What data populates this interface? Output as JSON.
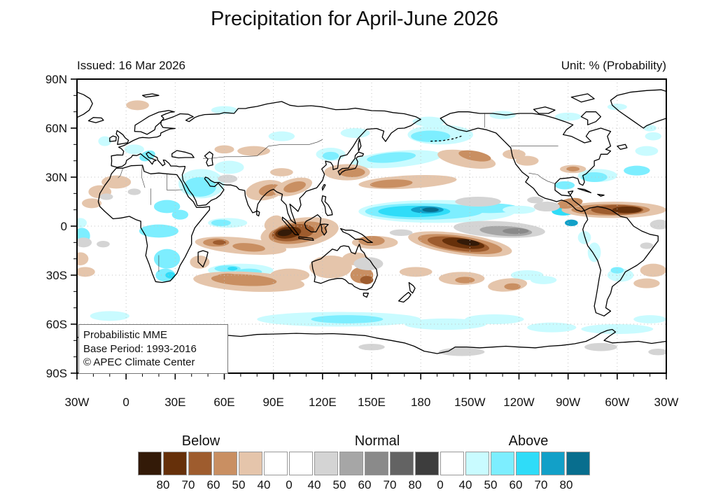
{
  "page": {
    "title": "Precipitation for April-June 2026"
  },
  "map_header": {
    "issued": "Issued: 16 Mar 2026",
    "unit": "Unit: % (Probability)"
  },
  "legend_box": {
    "line1": "Probabilistic MME",
    "line2": "Base Period: 1993-2016",
    "line3": "© APEC Climate Center"
  },
  "chart_data": {
    "type": "heatmap",
    "title": "Precipitation for April-June 2026",
    "issued": "16 Mar 2026",
    "unit": "% (Probability)",
    "projection": "equirectangular world map, longitude 30W eastward through 180 back to 30W, latitude 90N-90S",
    "x_ticks": [
      "30W",
      "0",
      "30E",
      "60E",
      "90E",
      "120E",
      "150E",
      "180",
      "150W",
      "120W",
      "90W",
      "60W",
      "30W"
    ],
    "y_ticks": [
      "90N",
      "60N",
      "30N",
      "0",
      "30S",
      "60S",
      "90S"
    ],
    "lon_range_deg": [
      -30,
      330
    ],
    "lat_range_deg": [
      -90,
      90
    ],
    "grid": "dashed graticule every 30 degrees",
    "palette": {
      "b80": "#331a08",
      "b70": "#66300a",
      "b60": "#9e5c2e",
      "b50": "#c98f62",
      "b40": "#e5c5ab",
      "n40": "#d4d4d4",
      "n50": "#a6a6a6",
      "n60": "#8a8a8a",
      "n70": "#636363",
      "n80": "#3d3d3d",
      "a40": "#c9fbff",
      "a50": "#7deeff",
      "a60": "#2fdcf8",
      "a70": "#12a0c8",
      "a80": "#086e8e",
      "white": "#ffffff"
    },
    "colorbar": {
      "groups": [
        {
          "label": "Below",
          "box_range": [
            0,
            4
          ]
        },
        {
          "label": "Normal",
          "box_range": [
            7,
            11
          ]
        },
        {
          "label": "Above",
          "box_range": [
            13,
            17
          ]
        }
      ],
      "boxes": [
        "b80",
        "b70",
        "b60",
        "b50",
        "b40",
        "white",
        "white",
        "n40",
        "n50",
        "n60",
        "n70",
        "n80",
        "white",
        "a40",
        "a50",
        "a60",
        "a70",
        "a80"
      ],
      "boundary_labels": [
        "80",
        "70",
        "60",
        "50",
        "40",
        "0",
        "40",
        "50",
        "60",
        "70",
        "80",
        "0",
        "40",
        "50",
        "60",
        "70",
        "80"
      ]
    },
    "key_signals": [
      {
        "region": "Equatorial central Pacific (~150E-120W, 0-15N)",
        "category": "Above",
        "probability": "up to 80%"
      },
      {
        "region": "Maritime Continent / Indonesia (~85E-135E, 12S-5N)",
        "category": "Below",
        "probability": "up to 80%"
      },
      {
        "region": "South Pacific Convergence Zone (~175E-130W, 5-17S)",
        "category": "Below",
        "probability": "up to 80%"
      },
      {
        "region": "Caribbean and tropical Atlantic (~85W-30W, 5-15N)",
        "category": "Below",
        "probability": "up to 70%"
      },
      {
        "region": "Equatorial Pacific south of the above-normal band (~160W-100W, 8S-5N)",
        "category": "Normal",
        "probability": "40-60%"
      },
      {
        "region": "Subtropical Indian Ocean (~50E-110E, 28-40S)",
        "category": "Below",
        "probability": "up to 50%"
      },
      {
        "region": "Arabian Peninsula, Northeast and equatorial Africa",
        "category": "Above",
        "probability": "40-50%"
      },
      {
        "region": "Southern Ocean bands (~50-65S)",
        "category": "Above",
        "probability": "40-50%"
      },
      {
        "region": "North Pacific 35-45N (west) and Bering Sea",
        "category": "Above",
        "probability": "40-50%"
      },
      {
        "region": "Northeast Pacific and subtropical North Pacific (~25-45N)",
        "category": "Below",
        "probability": "40-50%"
      }
    ],
    "anomaly_blobs": [
      [
        95,
        55,
        8,
        3,
        0,
        "a40"
      ],
      [
        140,
        57,
        9,
        3,
        0,
        "a40"
      ],
      [
        60,
        71,
        8,
        2.5,
        0,
        "a40"
      ],
      [
        185,
        64,
        10,
        3,
        0,
        "a40"
      ],
      [
        230,
        68,
        8,
        2.5,
        0,
        "a40"
      ],
      [
        270,
        67,
        8,
        2.5,
        0,
        "a40"
      ],
      [
        300,
        73,
        6,
        2,
        0,
        "a40"
      ],
      [
        320,
        60,
        4,
        2,
        0,
        "a40"
      ],
      [
        5,
        47,
        6,
        3,
        0,
        "a40"
      ],
      [
        13,
        43,
        5,
        3,
        -20,
        "a50"
      ],
      [
        -13,
        52,
        4,
        3,
        0,
        "a40"
      ],
      [
        25,
        12,
        8,
        4,
        0,
        "a50"
      ],
      [
        33,
        7,
        5,
        3,
        0,
        "a50"
      ],
      [
        20,
        -3,
        12,
        4,
        0,
        "a50"
      ],
      [
        25,
        -20,
        8,
        6,
        0,
        "a50"
      ],
      [
        24,
        -30,
        6,
        4,
        0,
        "a50"
      ],
      [
        27,
        -30,
        3,
        2,
        0,
        "a60"
      ],
      [
        46,
        26,
        14,
        9,
        0,
        "a40"
      ],
      [
        45,
        24,
        10,
        6,
        0,
        "a50"
      ],
      [
        63,
        36,
        9,
        4,
        0,
        "a40"
      ],
      [
        62,
        2,
        12,
        3,
        0,
        "a40"
      ],
      [
        58,
        2,
        6,
        2,
        0,
        "a50"
      ],
      [
        125,
        44,
        9,
        4,
        0,
        "a40"
      ],
      [
        125,
        43,
        5,
        2.5,
        0,
        "a50"
      ],
      [
        165,
        41,
        28,
        5,
        -5,
        "a40"
      ],
      [
        162,
        42,
        15,
        3,
        -5,
        "a50"
      ],
      [
        192,
        56,
        20,
        6,
        0,
        "a40"
      ],
      [
        186,
        55,
        12,
        3.5,
        0,
        "a50"
      ],
      [
        190,
        9,
        48,
        7,
        0,
        "a40"
      ],
      [
        182,
        9,
        36,
        5,
        0,
        "a50"
      ],
      [
        176,
        9,
        22,
        3.5,
        0,
        "a60"
      ],
      [
        184,
        10,
        10,
        2.2,
        0,
        "a70"
      ],
      [
        186,
        10,
        5,
        1.4,
        0,
        "a80"
      ],
      [
        222,
        11,
        18,
        3,
        0,
        "a50"
      ],
      [
        240,
        10,
        10,
        2.5,
        0,
        "a40"
      ],
      [
        267,
        9,
        7,
        2.5,
        0,
        "a60"
      ],
      [
        272,
        2,
        4,
        2,
        0,
        "a70"
      ],
      [
        268,
        25,
        6,
        2.5,
        0,
        "a50"
      ],
      [
        288,
        31,
        12,
        4,
        0,
        "a40"
      ],
      [
        286,
        30,
        8,
        3,
        0,
        "a50"
      ],
      [
        312,
        34,
        8,
        3,
        0,
        "a50"
      ],
      [
        318,
        46,
        7,
        3,
        0,
        "a40"
      ],
      [
        322,
        55,
        5,
        2.5,
        0,
        "a40"
      ],
      [
        245,
        -30,
        10,
        3,
        0,
        "a40"
      ],
      [
        255,
        -33,
        8,
        2.5,
        0,
        "a40"
      ],
      [
        302,
        -30,
        8,
        4,
        0,
        "a40"
      ],
      [
        300,
        -27,
        4,
        2,
        0,
        "a50"
      ],
      [
        286,
        -16,
        4,
        6,
        0,
        "a40"
      ],
      [
        280,
        -7,
        4,
        4,
        0,
        "a40"
      ],
      [
        70,
        -27,
        20,
        4,
        0,
        "a40"
      ],
      [
        62,
        -26,
        8,
        2,
        0,
        "a50"
      ],
      [
        75,
        -28,
        8,
        2,
        0,
        "a50"
      ],
      [
        65,
        -26,
        3,
        1.2,
        0,
        "a60"
      ],
      [
        130,
        -57,
        50,
        4.5,
        0,
        "a40"
      ],
      [
        135,
        -57,
        22,
        2.5,
        0,
        "a50"
      ],
      [
        195,
        -60,
        25,
        3.5,
        0,
        "a40"
      ],
      [
        225,
        -57,
        18,
        3,
        0,
        "a40"
      ],
      [
        260,
        -62,
        15,
        3,
        0,
        "a40"
      ],
      [
        300,
        -63,
        22,
        3,
        0,
        "a40"
      ],
      [
        -10,
        -55,
        12,
        3,
        0,
        "a40"
      ],
      [
        320,
        -57,
        10,
        2.5,
        0,
        "a40"
      ],
      [
        -27,
        -6,
        5,
        5,
        0,
        "a50"
      ],
      [
        -28,
        2,
        4,
        3,
        0,
        "a40"
      ],
      [
        -6,
        27,
        9,
        4,
        0,
        "b40"
      ],
      [
        -16,
        21,
        7,
        4,
        0,
        "b40"
      ],
      [
        -21,
        14,
        6,
        3,
        0,
        "b40"
      ],
      [
        7,
        74,
        7,
        3,
        0,
        "b40"
      ],
      [
        78,
        46,
        10,
        3,
        0,
        "b40"
      ],
      [
        60,
        47,
        6,
        2.5,
        0,
        "b40"
      ],
      [
        95,
        33,
        7,
        2.5,
        0,
        "b40"
      ],
      [
        85,
        22,
        12,
        6,
        -10,
        "b40"
      ],
      [
        88,
        22,
        7,
        3.5,
        -10,
        "b50"
      ],
      [
        102,
        24,
        12,
        5,
        -15,
        "b40"
      ],
      [
        103,
        24,
        7,
        3,
        -15,
        "b50"
      ],
      [
        135,
        33,
        14,
        5,
        0,
        "b40"
      ],
      [
        138,
        33,
        8,
        3,
        0,
        "b50"
      ],
      [
        172,
        27,
        30,
        4,
        -3,
        "b40"
      ],
      [
        162,
        26,
        13,
        2.5,
        -3,
        "b50"
      ],
      [
        208,
        41,
        18,
        5,
        10,
        "b40"
      ],
      [
        213,
        43,
        10,
        3,
        10,
        "b50"
      ],
      [
        237,
        44,
        7,
        3,
        0,
        "b40"
      ],
      [
        245,
        40,
        7,
        3,
        0,
        "b40"
      ],
      [
        273,
        35,
        8,
        2.5,
        0,
        "b40"
      ],
      [
        273,
        35,
        4,
        1.5,
        0,
        "b50"
      ],
      [
        298,
        10,
        32,
        5,
        0,
        "b40"
      ],
      [
        296,
        10,
        24,
        3.5,
        0,
        "b50"
      ],
      [
        300,
        10,
        16,
        3,
        0,
        "b60"
      ],
      [
        306,
        10,
        9,
        2,
        0,
        "b70"
      ],
      [
        271,
        14,
        8,
        3,
        -10,
        "b50"
      ],
      [
        106,
        -4,
        24,
        9,
        -8,
        "b40"
      ],
      [
        105,
        -4,
        18,
        6.5,
        -8,
        "b50"
      ],
      [
        102,
        -4,
        13,
        5,
        -8,
        "b60"
      ],
      [
        99,
        -4,
        8,
        3.5,
        -8,
        "b70"
      ],
      [
        97,
        -4,
        4.5,
        2,
        -8,
        "b80"
      ],
      [
        90,
        2,
        6,
        4,
        -30,
        "b40"
      ],
      [
        152,
        -10,
        14,
        4,
        0,
        "b40"
      ],
      [
        150,
        -9,
        8,
        3,
        0,
        "b50"
      ],
      [
        70,
        -12,
        28,
        5,
        5,
        "b40"
      ],
      [
        55,
        -10,
        8,
        2.5,
        0,
        "b50"
      ],
      [
        75,
        -13,
        10,
        2.5,
        5,
        "b50"
      ],
      [
        57,
        -10,
        4,
        1.5,
        0,
        "b60"
      ],
      [
        45,
        -22,
        6,
        4,
        0,
        "b40"
      ],
      [
        75,
        -34,
        34,
        6,
        3,
        "b40"
      ],
      [
        72,
        -33,
        20,
        3.5,
        3,
        "b50"
      ],
      [
        62,
        -31,
        7,
        2,
        0,
        "b50"
      ],
      [
        125,
        -25,
        13,
        7,
        0,
        "b40"
      ],
      [
        140,
        -20,
        8,
        4,
        0,
        "b40"
      ],
      [
        144,
        -30,
        7,
        5,
        0,
        "b50"
      ],
      [
        147,
        -33,
        4,
        2.5,
        0,
        "b60"
      ],
      [
        100,
        -30,
        12,
        4,
        0,
        "b40"
      ],
      [
        177,
        -28,
        10,
        3,
        0,
        "b40"
      ],
      [
        204,
        -11,
        32,
        6.5,
        8,
        "b40"
      ],
      [
        204,
        -11,
        26,
        5,
        8,
        "b50"
      ],
      [
        203,
        -11,
        19,
        4,
        8,
        "b60"
      ],
      [
        206,
        -10.5,
        13,
        3,
        8,
        "b70"
      ],
      [
        209,
        -10,
        7,
        1.8,
        8,
        "b80"
      ],
      [
        205,
        -32,
        14,
        4,
        0,
        "b40"
      ],
      [
        207,
        -33,
        6,
        2,
        0,
        "b50"
      ],
      [
        233,
        -36,
        12,
        4,
        -5,
        "b40"
      ],
      [
        236,
        -37,
        5,
        2,
        0,
        "b50"
      ],
      [
        322,
        -27,
        8,
        4,
        0,
        "b40"
      ],
      [
        318,
        -35,
        8,
        3,
        0,
        "b40"
      ],
      [
        -28,
        -20,
        5,
        4,
        0,
        "b40"
      ],
      [
        -25,
        -28,
        6,
        3,
        0,
        "b40"
      ],
      [
        228,
        -2,
        28,
        5,
        3,
        "n40"
      ],
      [
        232,
        -3,
        16,
        3,
        3,
        "n50"
      ],
      [
        238,
        -3,
        8,
        1.8,
        0,
        "n60"
      ],
      [
        168,
        -4,
        7,
        2,
        0,
        "n40"
      ],
      [
        215,
        15,
        14,
        3,
        0,
        "n40"
      ],
      [
        257,
        12,
        8,
        3,
        0,
        "n40"
      ],
      [
        250,
        16,
        5,
        2,
        0,
        "n40"
      ],
      [
        326,
        1,
        6,
        3,
        0,
        "n40"
      ],
      [
        318,
        -12,
        4,
        2,
        0,
        "n40"
      ],
      [
        -26,
        -10,
        5,
        3,
        0,
        "n40"
      ],
      [
        -14,
        -11,
        4,
        2,
        0,
        "n40"
      ],
      [
        5,
        21,
        4,
        2,
        0,
        "n40"
      ],
      [
        -12,
        18,
        4,
        2,
        0,
        "n40"
      ],
      [
        62,
        29,
        6,
        2.5,
        0,
        "n40"
      ],
      [
        148,
        -23,
        9,
        4,
        0,
        "n40"
      ],
      [
        205,
        -77,
        14,
        2.5,
        0,
        "n40"
      ],
      [
        290,
        -74,
        10,
        2.5,
        0,
        "n40"
      ],
      [
        325,
        -77,
        6,
        2,
        0,
        "n40"
      ],
      [
        150,
        -74,
        8,
        2,
        0,
        "n40"
      ]
    ]
  }
}
